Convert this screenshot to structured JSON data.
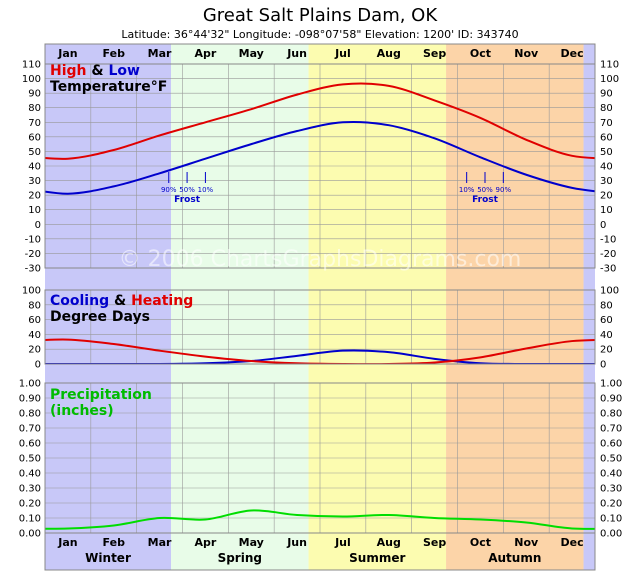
{
  "title": "Great Salt Plains Dam, OK",
  "subtitle": "Latitude: 36°44'32\"  Longitude: -098°07'58\"  Elevation: 1200'  ID: 343740",
  "watermark": "© 2006 ChartsGraphsDiagrams.com",
  "months": [
    "Jan",
    "Feb",
    "Mar",
    "Apr",
    "May",
    "Jun",
    "Jul",
    "Aug",
    "Sep",
    "Oct",
    "Nov",
    "Dec"
  ],
  "seasons": [
    {
      "name": "Winter",
      "start": 0,
      "end": 2.75,
      "color": "#c8c8f8"
    },
    {
      "name": "Spring",
      "start": 2.75,
      "end": 5.75,
      "color": "#e8fce8"
    },
    {
      "name": "Summer",
      "start": 5.75,
      "end": 8.75,
      "color": "#fcfcb0"
    },
    {
      "name": "Autumn",
      "start": 8.75,
      "end": 11.75,
      "color": "#fcd4a8"
    },
    {
      "name": "",
      "start": 11.75,
      "end": 12,
      "color": "#c8c8f8"
    }
  ],
  "legend": {
    "temp_high": "High",
    "temp_amp": "&",
    "temp_low": "Low",
    "temp_line2": "Temperature°F",
    "dd_cool": "Cooling",
    "dd_amp": "&",
    "dd_heat": "Heating",
    "dd_line2": "Degree Days",
    "precip_line1": "Precipitation",
    "precip_line2": "(inches)"
  },
  "frost": {
    "spring_label": "Frost",
    "fall_label": "Frost",
    "spring": [
      {
        "label": "90%",
        "month": 2.7
      },
      {
        "label": "50%",
        "month": 3.1
      },
      {
        "label": "10%",
        "month": 3.5
      }
    ],
    "fall": [
      {
        "label": "10%",
        "month": 9.2
      },
      {
        "label": "50%",
        "month": 9.6
      },
      {
        "label": "90%",
        "month": 10.0
      }
    ]
  },
  "colors": {
    "high": "#e00000",
    "low": "#0000cc",
    "cooling": "#0000cc",
    "heating": "#e00000",
    "precip": "#00dd00",
    "grid": "#999999",
    "frame": "#888888"
  },
  "chart_data": [
    {
      "type": "line",
      "title": "High & Low Temperature°F",
      "x": [
        0.5,
        1.5,
        2.5,
        3.5,
        4.5,
        5.5,
        6.5,
        7.5,
        8.5,
        9.5,
        10.5,
        11.5
      ],
      "series": [
        {
          "name": "High",
          "values": [
            45,
            51,
            61,
            70,
            79,
            89,
            96,
            95,
            85,
            73,
            58,
            47
          ]
        },
        {
          "name": "Low",
          "values": [
            21,
            26,
            35,
            45,
            55,
            64,
            70,
            68,
            59,
            46,
            34,
            25
          ]
        }
      ],
      "yticks": [
        -30,
        -20,
        -10,
        0,
        10,
        20,
        30,
        40,
        50,
        60,
        70,
        80,
        90,
        100,
        110
      ],
      "ylim": [
        -30,
        110
      ]
    },
    {
      "type": "line",
      "title": "Cooling & Heating Degree Days",
      "x": [
        0.5,
        1.5,
        2.5,
        3.5,
        4.5,
        5.5,
        6.5,
        7.5,
        8.5,
        9.5,
        10.5,
        11.5
      ],
      "series": [
        {
          "name": "Cooling",
          "values": [
            0,
            0,
            0,
            1,
            4,
            11,
            18,
            16,
            7,
            1,
            0,
            0
          ]
        },
        {
          "name": "Heating",
          "values": [
            33,
            27,
            18,
            10,
            4,
            1,
            0,
            0,
            2,
            9,
            21,
            31
          ]
        }
      ],
      "yticks": [
        0,
        20,
        40,
        60,
        80,
        100
      ],
      "ylim": [
        0,
        100
      ]
    },
    {
      "type": "line",
      "title": "Precipitation (inches)",
      "x": [
        0.5,
        1.5,
        2.5,
        3.5,
        4.5,
        5.5,
        6.5,
        7.5,
        8.5,
        9.5,
        10.5,
        11.5
      ],
      "series": [
        {
          "name": "Precipitation",
          "values": [
            0.03,
            0.05,
            0.1,
            0.09,
            0.15,
            0.12,
            0.11,
            0.12,
            0.1,
            0.09,
            0.07,
            0.03
          ]
        }
      ],
      "yticks": [
        0,
        0.1,
        0.2,
        0.3,
        0.4,
        0.5,
        0.6,
        0.7,
        0.8,
        0.9,
        1.0
      ],
      "ylim": [
        0,
        1.0
      ]
    }
  ]
}
